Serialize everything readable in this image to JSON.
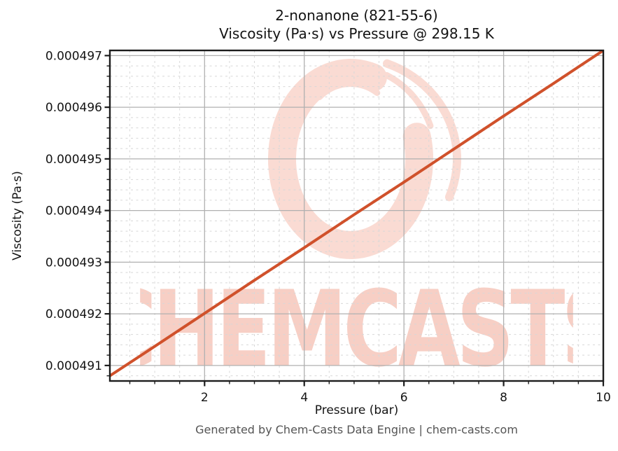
{
  "chart_data": {
    "type": "line",
    "title": "2-nonanone (821-55-6)",
    "subtitle": "Viscosity (Pa·s) vs Pressure @ 298.15 K",
    "xlabel": "Pressure (bar)",
    "ylabel": "Viscosity (Pa·s)",
    "xlim": [
      0.1,
      10
    ],
    "ylim": [
      0.0004907,
      0.0004971
    ],
    "x_ticks": [
      2,
      4,
      6,
      8,
      10
    ],
    "x_tick_labels": [
      "2",
      "4",
      "6",
      "8",
      "10"
    ],
    "x_minor_ticks": [
      0.5,
      1,
      1.5,
      2.5,
      3,
      3.5,
      4.5,
      5,
      5.5,
      6.5,
      7,
      7.5,
      8.5,
      9,
      9.5
    ],
    "y_ticks": [
      0.000491,
      0.000492,
      0.000493,
      0.000494,
      0.000495,
      0.000496,
      0.000497
    ],
    "y_tick_labels": [
      "0.000491",
      "0.000492",
      "0.000493",
      "0.000494",
      "0.000495",
      "0.000496",
      "0.000497"
    ],
    "y_minor_ticks": [
      0.0004908,
      0.0004912,
      0.0004914,
      0.0004916,
      0.0004918,
      0.0004922,
      0.0004924,
      0.0004926,
      0.0004928,
      0.0004932,
      0.0004934,
      0.0004936,
      0.0004938,
      0.0004942,
      0.0004944,
      0.0004946,
      0.0004948,
      0.0004952,
      0.0004954,
      0.0004956,
      0.0004958,
      0.0004962,
      0.0004964,
      0.0004966,
      0.0004968
    ],
    "grid": {
      "major": true,
      "minor": true,
      "major_style": "solid",
      "minor_style": "dashed"
    },
    "legend": "none",
    "series": [
      {
        "name": "Viscosity vs Pressure",
        "color": "#d0512b",
        "linewidth": 4,
        "x": [
          0.1,
          1,
          2,
          3,
          4,
          5,
          6,
          7,
          8,
          9,
          10
        ],
        "y": [
          0.0004908,
          0.00049137,
          0.00049201,
          0.00049265,
          0.00049328,
          0.00049392,
          0.00049455,
          0.00049519,
          0.00049583,
          0.00049646,
          0.0004971
        ]
      }
    ]
  },
  "watermark": {
    "text": "CHEMCASTS",
    "logo": "brush-circle-logo",
    "text_color": "#f7cfc5",
    "logo_color": "#fadbd3"
  },
  "footer": {
    "text": "Generated by Chem-Casts Data Engine | chem-casts.com"
  },
  "colors": {
    "background": "#ffffff",
    "spine": "#1d1d1d",
    "major_grid": "#b0b0b0",
    "minor_grid": "#d8d8d8",
    "tick_text": "#141414",
    "footer_text": "#545454"
  }
}
